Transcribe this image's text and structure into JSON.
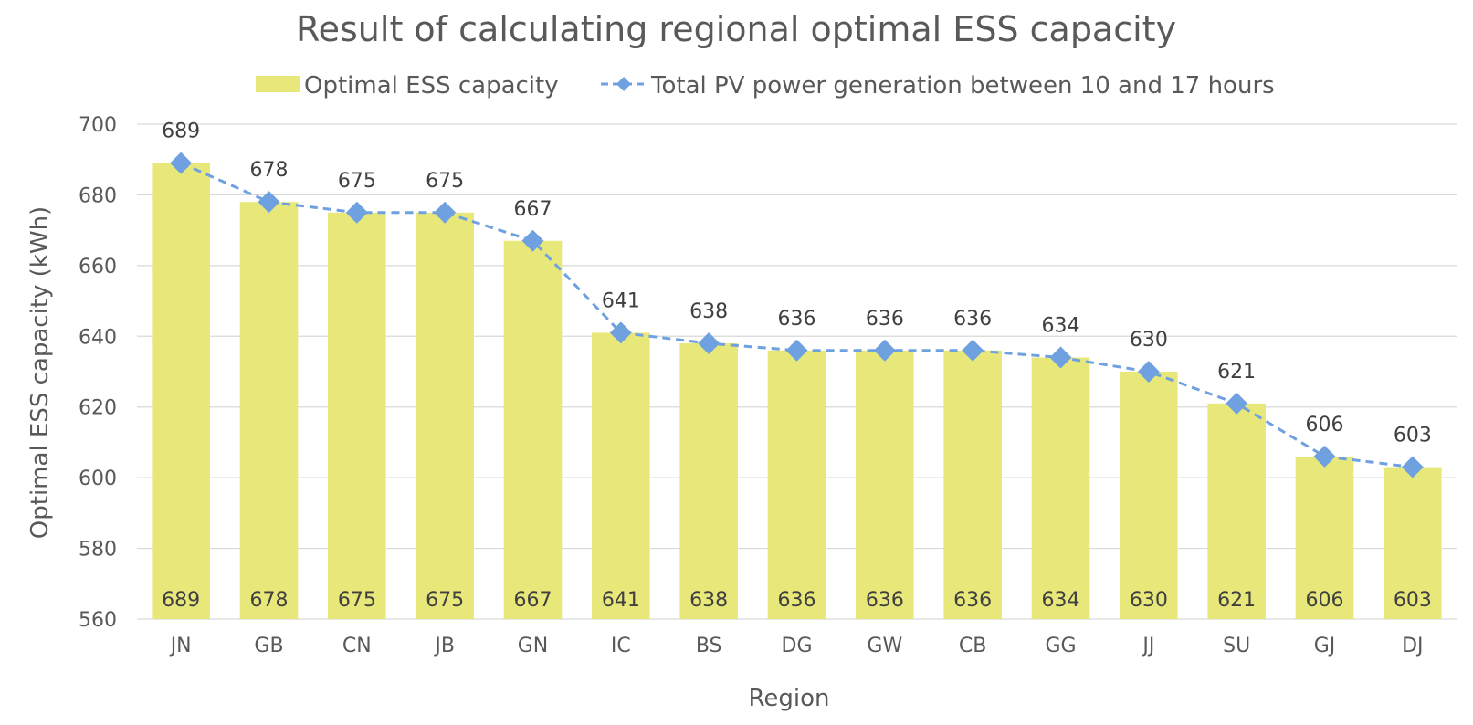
{
  "chart_data": {
    "type": "bar",
    "title": "Result of calculating regional optimal ESS capacity",
    "xlabel": "Region",
    "ylabel": "Optimal ESS capacity (kWh)",
    "ylim": [
      560,
      700
    ],
    "ytick_step": 20,
    "grid": true,
    "legend_position": "top",
    "categories": [
      "JN",
      "GB",
      "CN",
      "JB",
      "GN",
      "IC",
      "BS",
      "DG",
      "GW",
      "CB",
      "GG",
      "JJ",
      "SU",
      "GJ",
      "DJ"
    ],
    "series": [
      {
        "name": "Optimal ESS capacity",
        "type": "bar",
        "color": "#e8e87a",
        "values": [
          689,
          678,
          675,
          675,
          667,
          641,
          638,
          636,
          636,
          636,
          634,
          630,
          621,
          606,
          603
        ]
      },
      {
        "name": "Total PV power generation between 10 and 17 hours",
        "type": "line",
        "style": "dashed",
        "marker": "diamond",
        "color": "#6fa0e0",
        "values": [
          689,
          678,
          675,
          675,
          667,
          641,
          638,
          636,
          636,
          636,
          634,
          630,
          621,
          606,
          603
        ]
      }
    ]
  }
}
